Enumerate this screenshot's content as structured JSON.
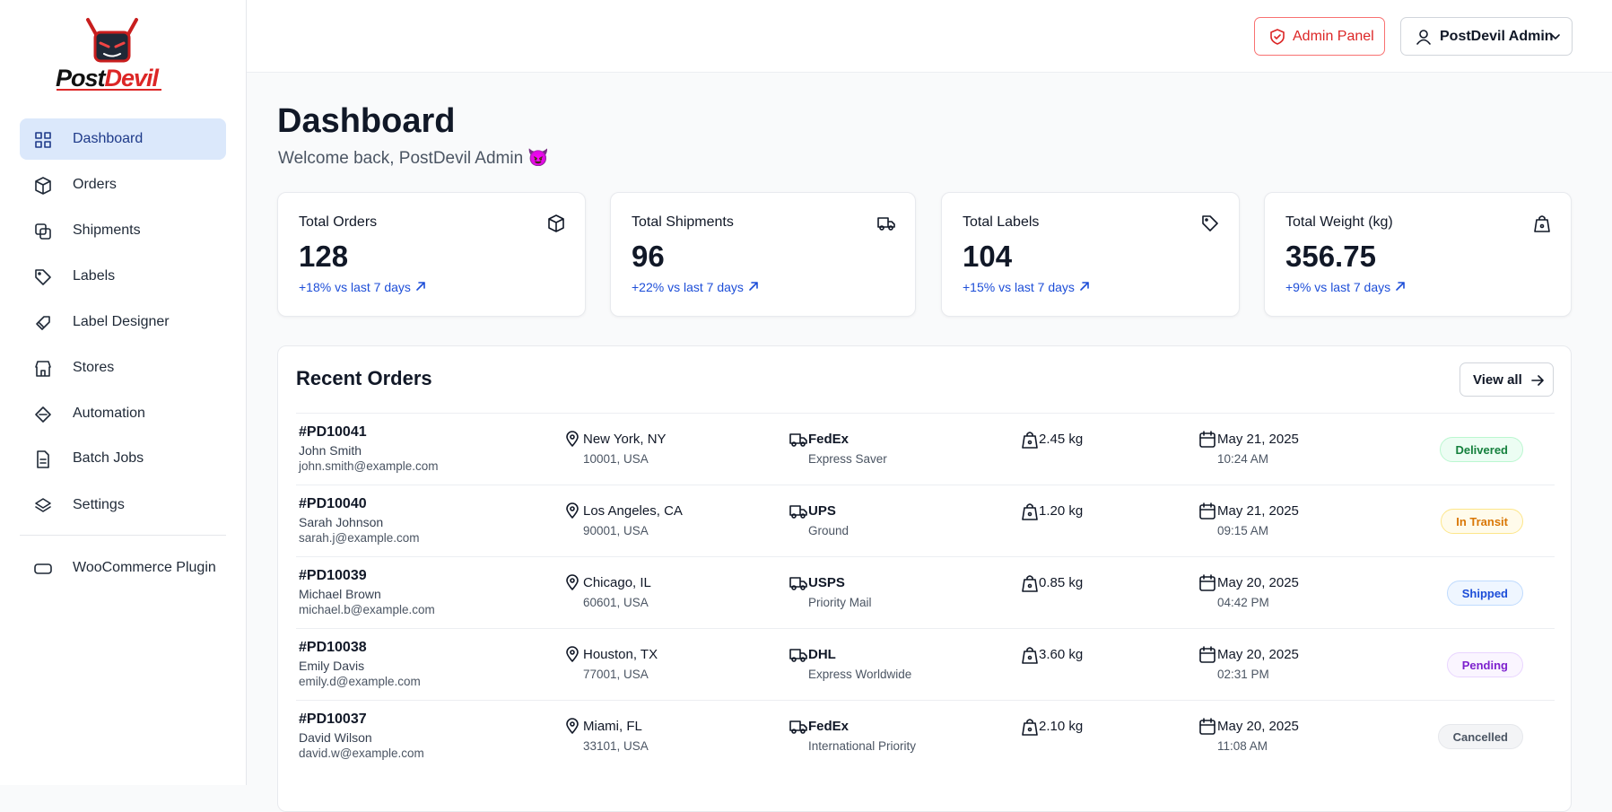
{
  "brand": {
    "first": "Post",
    "second": "Devil"
  },
  "nav": [
    "Dashboard",
    "Orders",
    "Shipments",
    "Labels",
    "Label Designer",
    "Stores",
    "Automation",
    "Batch Jobs",
    "Settings"
  ],
  "nav_extra": "WooCommerce Plugin",
  "header": {
    "admin_button": "Admin Panel",
    "user_button": "PostDevil Admin"
  },
  "page": {
    "title": "Dashboard",
    "subtitle": "Welcome back, PostDevil Admin 😈"
  },
  "stats": [
    {
      "label": "Total Orders",
      "value": "128",
      "change": "+18% vs last 7 days"
    },
    {
      "label": "Total Shipments",
      "value": "96",
      "change": "+22% vs last 7 days"
    },
    {
      "label": "Total Labels",
      "value": "104",
      "change": "+15% vs last 7 days"
    },
    {
      "label": "Total Weight (kg)",
      "value": "356.75",
      "change": "+9% vs last 7 days"
    }
  ],
  "recent": {
    "title": "Recent Orders",
    "view_all": "View all",
    "orders": [
      {
        "id": "#PD10041",
        "name": "John Smith",
        "email": "john.smith@example.com",
        "city": "New York, NY",
        "zip": "10001, USA",
        "carrier": "FedEx",
        "service": "Express Saver",
        "weight": "2.45 kg",
        "date": "May 21, 2025",
        "time": "10:24 AM",
        "status": "Delivered"
      },
      {
        "id": "#PD10040",
        "name": "Sarah Johnson",
        "email": "sarah.j@example.com",
        "city": "Los Angeles, CA",
        "zip": "90001, USA",
        "carrier": "UPS",
        "service": "Ground",
        "weight": "1.20 kg",
        "date": "May 21, 2025",
        "time": "09:15 AM",
        "status": "In Transit"
      },
      {
        "id": "#PD10039",
        "name": "Michael Brown",
        "email": "michael.b@example.com",
        "city": "Chicago, IL",
        "zip": "60601, USA",
        "carrier": "USPS",
        "service": "Priority Mail",
        "weight": "0.85 kg",
        "date": "May 20, 2025",
        "time": "04:42 PM",
        "status": "Shipped"
      },
      {
        "id": "#PD10038",
        "name": "Emily Davis",
        "email": "emily.d@example.com",
        "city": "Houston, TX",
        "zip": "77001, USA",
        "carrier": "DHL",
        "service": "Express Worldwide",
        "weight": "3.60 kg",
        "date": "May 20, 2025",
        "time": "02:31 PM",
        "status": "Pending"
      },
      {
        "id": "#PD10037",
        "name": "David Wilson",
        "email": "david.w@example.com",
        "city": "Miami, FL",
        "zip": "33101, USA",
        "carrier": "FedEx",
        "service": "International Priority",
        "weight": "2.10 kg",
        "date": "May 20, 2025",
        "time": "11:08 AM",
        "status": "Cancelled"
      }
    ]
  }
}
